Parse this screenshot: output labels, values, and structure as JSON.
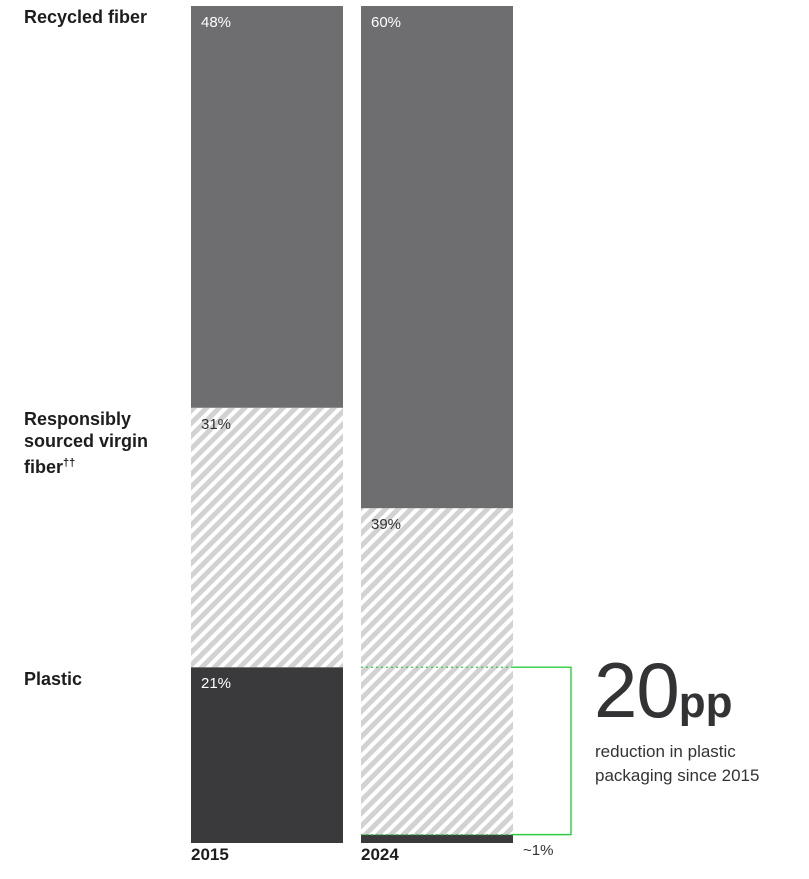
{
  "chart_data": {
    "type": "bar",
    "stacked": true,
    "categories": [
      "2015",
      "2024"
    ],
    "series": [
      {
        "name": "Plastic",
        "values": [
          21,
          1
        ],
        "labels": [
          "21%",
          "~1%"
        ],
        "color": "#3a3a3c"
      },
      {
        "name": "Responsibly sourced virgin fiber",
        "name_suffix": "††",
        "values": [
          31,
          39
        ],
        "labels": [
          "31%",
          "39%"
        ],
        "color": "#d2d2d2",
        "pattern": "diagonal-hatch"
      },
      {
        "name": "Recycled fiber",
        "values": [
          48,
          60
        ],
        "labels": [
          "48%",
          "60%"
        ],
        "color": "#6e6e70"
      }
    ],
    "ylim": [
      0,
      100
    ]
  },
  "callout": {
    "value": "20",
    "unit": "pp",
    "text": "reduction in plastic packaging since 2015",
    "bracket_color": "#2ecc40"
  }
}
